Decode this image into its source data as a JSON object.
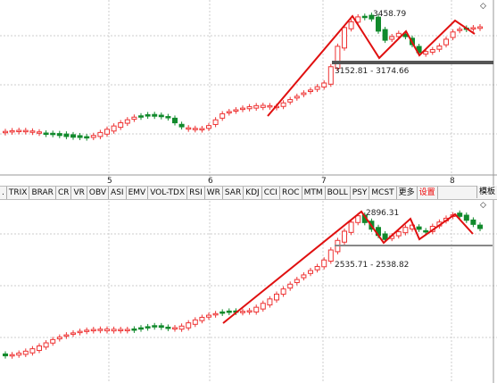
{
  "top_panel": {
    "high_label": "3458.79",
    "range_label": "3152.81 - 3174.66",
    "x_labels": [
      "5",
      "6",
      "7",
      "8"
    ]
  },
  "tabs": [
    ".",
    "TRIX",
    "BRAR",
    "CR",
    "VR",
    "OBV",
    "ASI",
    "EMV",
    "VOL-TDX",
    "RSI",
    "WR",
    "SAR",
    "KDJ",
    "CCI",
    "ROC",
    "MTM",
    "BOLL",
    "PSY",
    "MCST",
    "更多",
    "设置"
  ],
  "template_button": "模板",
  "bottom_panel": {
    "high_label": "2896.31",
    "range_label": "2535.71 - 2538.82"
  }
}
